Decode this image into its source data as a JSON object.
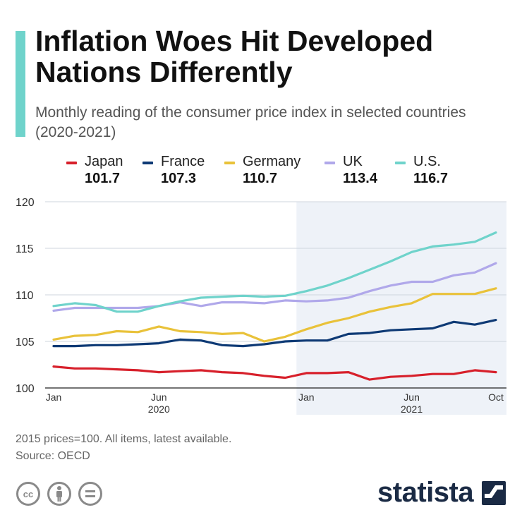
{
  "header": {
    "title": "Inflation Woes Hit Developed Nations Differently",
    "subtitle": "Monthly reading of the consumer price index in selected countries (2020-2021)"
  },
  "legend": [
    {
      "name": "Japan",
      "value": "101.7",
      "color": "#d7202b"
    },
    {
      "name": "France",
      "value": "107.3",
      "color": "#0e3a75"
    },
    {
      "name": "Germany",
      "value": "110.7",
      "color": "#e9c23a"
    },
    {
      "name": "UK",
      "value": "113.4",
      "color": "#b0a8ea"
    },
    {
      "name": "U.S.",
      "value": "116.7",
      "color": "#6fd3cb"
    }
  ],
  "chart_data": {
    "type": "line",
    "title": "Inflation Woes Hit Developed Nations Differently",
    "xlabel": "",
    "ylabel": "",
    "ylim": [
      100,
      120
    ],
    "yticks": [
      100,
      105,
      110,
      115,
      120
    ],
    "grid": true,
    "x": [
      "2020-01",
      "2020-02",
      "2020-03",
      "2020-04",
      "2020-05",
      "2020-06",
      "2020-07",
      "2020-08",
      "2020-09",
      "2020-10",
      "2020-11",
      "2020-12",
      "2021-01",
      "2021-02",
      "2021-03",
      "2021-04",
      "2021-05",
      "2021-06",
      "2021-07",
      "2021-08",
      "2021-09",
      "2021-10"
    ],
    "x_tick_labels": [
      {
        "index": 0,
        "label": "Jan"
      },
      {
        "index": 5,
        "label": "Jun"
      },
      {
        "index": 12,
        "label": "Jan"
      },
      {
        "index": 17,
        "label": "Jun"
      },
      {
        "index": 21,
        "label": "Oct"
      }
    ],
    "year_labels": [
      {
        "index": 5,
        "label": "2020"
      },
      {
        "index": 17,
        "label": "2021"
      }
    ],
    "highlight_start_index": 12,
    "series": [
      {
        "name": "Japan",
        "color": "#d7202b",
        "values": [
          102.3,
          102.1,
          102.1,
          102.0,
          101.9,
          101.7,
          101.8,
          101.9,
          101.7,
          101.6,
          101.3,
          101.1,
          101.6,
          101.6,
          101.7,
          100.9,
          101.2,
          101.3,
          101.5,
          101.5,
          101.9,
          101.7
        ]
      },
      {
        "name": "France",
        "color": "#0e3a75",
        "values": [
          104.5,
          104.5,
          104.6,
          104.6,
          104.7,
          104.8,
          105.2,
          105.1,
          104.6,
          104.5,
          104.7,
          105.0,
          105.1,
          105.1,
          105.8,
          105.9,
          106.2,
          106.3,
          106.4,
          107.1,
          106.8,
          107.3
        ]
      },
      {
        "name": "Germany",
        "color": "#e9c23a",
        "values": [
          105.2,
          105.6,
          105.7,
          106.1,
          106.0,
          106.6,
          106.1,
          106.0,
          105.8,
          105.9,
          105.0,
          105.5,
          106.3,
          107.0,
          107.5,
          108.2,
          108.7,
          109.1,
          110.1,
          110.1,
          110.1,
          110.7
        ]
      },
      {
        "name": "UK",
        "color": "#b0a8ea",
        "values": [
          108.3,
          108.6,
          108.6,
          108.6,
          108.6,
          108.8,
          109.2,
          108.8,
          109.2,
          109.2,
          109.1,
          109.4,
          109.3,
          109.4,
          109.7,
          110.4,
          111.0,
          111.4,
          111.4,
          112.1,
          112.4,
          113.4
        ]
      },
      {
        "name": "U.S.",
        "color": "#6fd3cb",
        "values": [
          108.8,
          109.1,
          108.9,
          108.2,
          108.2,
          108.8,
          109.3,
          109.7,
          109.8,
          109.9,
          109.8,
          109.9,
          110.4,
          111.0,
          111.8,
          112.7,
          113.6,
          114.6,
          115.2,
          115.4,
          115.7,
          116.7
        ]
      }
    ]
  },
  "footer": {
    "note": "2015 prices=100. All items, latest available.",
    "source": "Source: OECD",
    "brand": "statista"
  },
  "icons": {
    "cc": "creative-commons-icon",
    "by": "attribution-person-icon",
    "nd": "no-derivatives-icon",
    "brand_logo": "statista-logo-icon"
  }
}
